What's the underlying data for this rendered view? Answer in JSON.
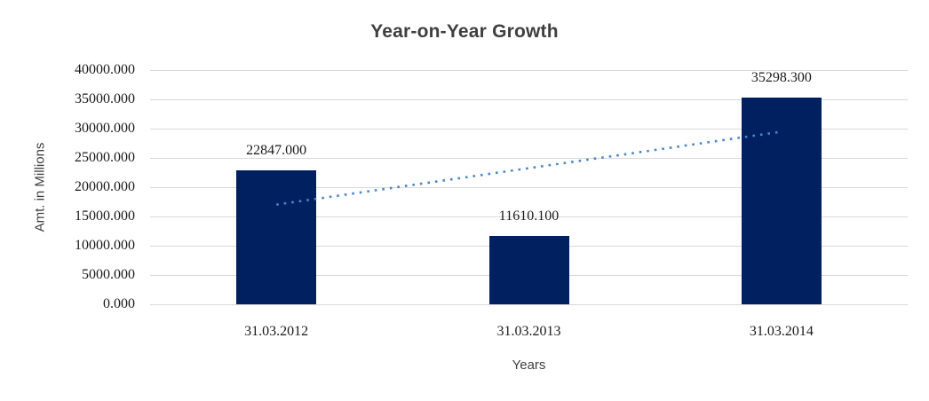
{
  "chart_data": {
    "type": "bar",
    "title": "Year-on-Year Growth",
    "xlabel": "Years",
    "ylabel": "Amt. in Millions",
    "categories": [
      "31.03.2012",
      "31.03.2013",
      "31.03.2014"
    ],
    "values": [
      22847.0,
      11610.1,
      35298.3
    ],
    "data_labels": [
      "22847.000",
      "11610.100",
      "35298.300"
    ],
    "ylim": [
      0,
      40000
    ],
    "y_ticks": [
      0,
      5000,
      10000,
      15000,
      20000,
      25000,
      30000,
      35000,
      40000
    ],
    "y_tick_decimals": 3,
    "grid": true,
    "legend": "none",
    "trendline": {
      "type": "linear",
      "style": "dotted",
      "start_value": 17026,
      "end_value": 29477
    }
  },
  "colors": {
    "bar": "#002060",
    "trendline": "#4a86c8",
    "gridline": "#d9d9d9",
    "title_text": "#3f3f3f",
    "axis_title_text": "#404040",
    "tick_text": "#1a1a1a",
    "frame_light": "#d5d5d5",
    "frame_dark": "#9b9b9b"
  }
}
